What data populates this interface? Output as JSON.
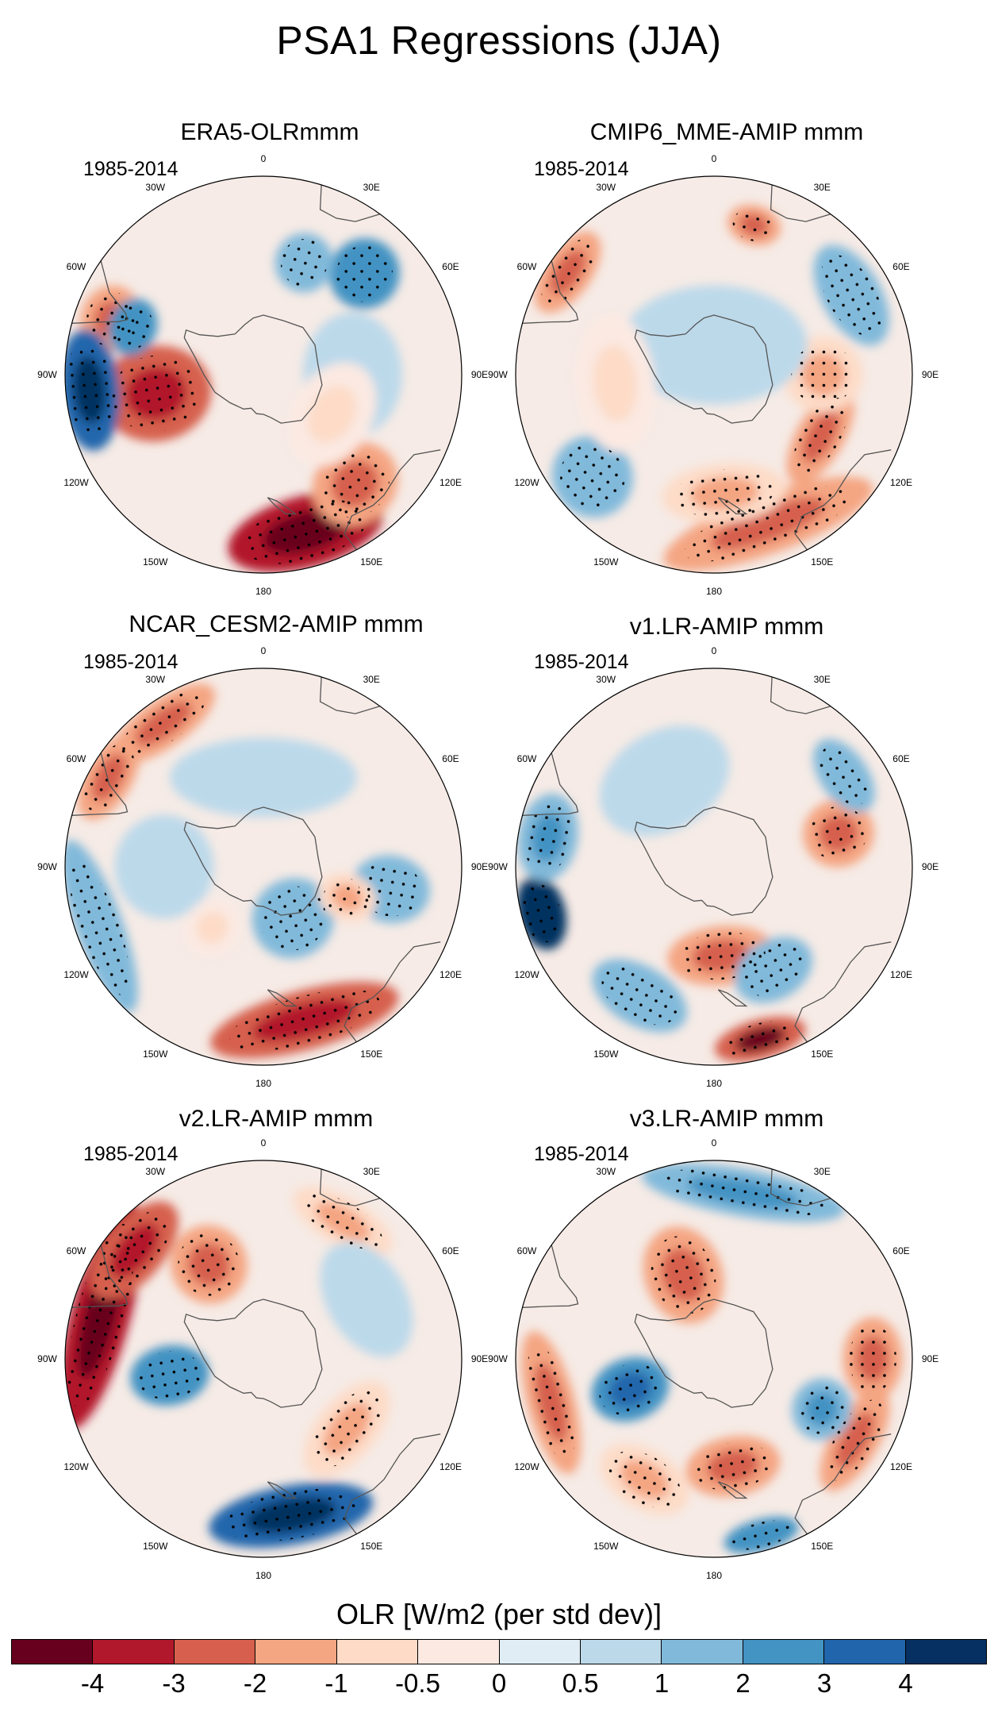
{
  "figure": {
    "title": "PSA1 Regressions (JJA)",
    "projection": "south polar stereographic",
    "lon_labels": [
      "0",
      "30E",
      "60E",
      "90E",
      "120E",
      "150E",
      "180",
      "150W",
      "120W",
      "90W",
      "60W",
      "30W"
    ],
    "stippling_note": "dots indicate statistically significant regression"
  },
  "panels": [
    {
      "title": "ERA5-OLRmmm",
      "period": "1985-2014",
      "anomalies": [
        {
          "lon": 165,
          "dist": 0.82,
          "value": -3.5,
          "lonw": 28,
          "radw": 0.18
        },
        {
          "lon": 140,
          "dist": 0.72,
          "value": -1.5,
          "lonw": 18,
          "radw": 0.2
        },
        {
          "lon": -100,
          "dist": 0.55,
          "value": -2.5,
          "lonw": 25,
          "radw": 0.28
        },
        {
          "lon": -70,
          "dist": 0.82,
          "value": -2,
          "lonw": 12,
          "radw": 0.15
        },
        {
          "lon": -95,
          "dist": 0.88,
          "value": 3,
          "lonw": 20,
          "radw": 0.15
        },
        {
          "lon": -70,
          "dist": 0.7,
          "value": 2,
          "lonw": 12,
          "radw": 0.12
        },
        {
          "lon": 45,
          "dist": 0.72,
          "value": 2,
          "lonw": 14,
          "radw": 0.18
        },
        {
          "lon": 20,
          "dist": 0.6,
          "value": 1,
          "lonw": 14,
          "radw": 0.15
        },
        {
          "lon": 90,
          "dist": 0.45,
          "value": 0.5,
          "lonw": 40,
          "radw": 0.25
        },
        {
          "lon": 120,
          "dist": 0.4,
          "value": -0.5,
          "lonw": 40,
          "radw": 0.2
        }
      ]
    },
    {
      "title": "CMIP6_MME-AMIP  mmm",
      "period": "1985-2014",
      "anomalies": [
        {
          "lon": 160,
          "dist": 0.8,
          "value": -2,
          "lonw": 40,
          "radw": 0.15
        },
        {
          "lon": 120,
          "dist": 0.62,
          "value": -1.5,
          "lonw": 25,
          "radw": 0.12
        },
        {
          "lon": 175,
          "dist": 0.6,
          "value": -1,
          "lonw": 30,
          "radw": 0.15
        },
        {
          "lon": 90,
          "dist": 0.55,
          "value": -1,
          "lonw": 20,
          "radw": 0.2
        },
        {
          "lon": -55,
          "dist": 0.9,
          "value": -1.5,
          "lonw": 15,
          "radw": 0.12
        },
        {
          "lon": 15,
          "dist": 0.78,
          "value": -1.5,
          "lonw": 10,
          "radw": 0.1
        },
        {
          "lon": 60,
          "dist": 0.8,
          "value": 1,
          "lonw": 20,
          "radw": 0.15
        },
        {
          "lon": -130,
          "dist": 0.8,
          "value": 1,
          "lonw": 15,
          "radw": 0.2
        },
        {
          "lon": 0,
          "dist": 0.15,
          "value": 0.5,
          "lonw": 180,
          "radw": 0.3
        },
        {
          "lon": -95,
          "dist": 0.5,
          "value": -0.5,
          "lonw": 40,
          "radw": 0.2
        }
      ]
    },
    {
      "title": "NCAR_CESM2-AMIP  mmm",
      "period": "1985-2014",
      "anomalies": [
        {
          "lon": 165,
          "dist": 0.8,
          "value": -2.5,
          "lonw": 35,
          "radw": 0.15
        },
        {
          "lon": -35,
          "dist": 0.88,
          "value": -2,
          "lonw": 20,
          "radw": 0.12
        },
        {
          "lon": -60,
          "dist": 0.9,
          "value": -1.5,
          "lonw": 15,
          "radw": 0.12
        },
        {
          "lon": -110,
          "dist": 0.88,
          "value": 1,
          "lonw": 30,
          "radw": 0.12
        },
        {
          "lon": -90,
          "dist": 0.5,
          "value": 0.5,
          "lonw": 30,
          "radw": 0.25
        },
        {
          "lon": 150,
          "dist": 0.3,
          "value": 1,
          "lonw": 40,
          "radw": 0.2
        },
        {
          "lon": 100,
          "dist": 0.65,
          "value": 1,
          "lonw": 15,
          "radw": 0.2
        },
        {
          "lon": 110,
          "dist": 0.45,
          "value": -1,
          "lonw": 15,
          "radw": 0.15
        },
        {
          "lon": -140,
          "dist": 0.4,
          "value": -0.5,
          "lonw": 20,
          "radw": 0.15
        },
        {
          "lon": 0,
          "dist": 0.45,
          "value": 0.5,
          "lonw": 60,
          "radw": 0.2
        }
      ]
    },
    {
      "title": "v1.LR-AMIP  mmm",
      "period": "1985-2014",
      "anomalies": [
        {
          "lon": -105,
          "dist": 0.9,
          "value": 4,
          "lonw": 12,
          "radw": 0.12
        },
        {
          "lon": -80,
          "dist": 0.85,
          "value": 1.5,
          "lonw": 15,
          "radw": 0.15
        },
        {
          "lon": 165,
          "dist": 0.9,
          "value": -3,
          "lonw": 15,
          "radw": 0.1
        },
        {
          "lon": 175,
          "dist": 0.45,
          "value": -1.5,
          "lonw": 35,
          "radw": 0.15
        },
        {
          "lon": 75,
          "dist": 0.65,
          "value": -1.5,
          "lonw": 15,
          "radw": 0.18
        },
        {
          "lon": -150,
          "dist": 0.75,
          "value": 1,
          "lonw": 20,
          "radw": 0.15
        },
        {
          "lon": 150,
          "dist": 0.6,
          "value": 1,
          "lonw": 20,
          "radw": 0.15
        },
        {
          "lon": 55,
          "dist": 0.8,
          "value": 1,
          "lonw": 15,
          "radw": 0.12
        },
        {
          "lon": -30,
          "dist": 0.5,
          "value": 0.5,
          "lonw": 40,
          "radw": 0.25
        }
      ]
    },
    {
      "title": "v2.LR-AMIP  mmm",
      "period": "1985-2014",
      "anomalies": [
        {
          "lon": -75,
          "dist": 0.85,
          "value": -3.5,
          "lonw": 40,
          "radw": 0.15
        },
        {
          "lon": -50,
          "dist": 0.85,
          "value": -2.5,
          "lonw": 20,
          "radw": 0.15
        },
        {
          "lon": -100,
          "dist": 0.48,
          "value": 2,
          "lonw": 18,
          "radw": 0.2
        },
        {
          "lon": 170,
          "dist": 0.8,
          "value": 3,
          "lonw": 30,
          "radw": 0.15
        },
        {
          "lon": -30,
          "dist": 0.55,
          "value": -1.5,
          "lonw": 20,
          "radw": 0.2
        },
        {
          "lon": 30,
          "dist": 0.8,
          "value": -1,
          "lonw": 20,
          "radw": 0.12
        },
        {
          "lon": 130,
          "dist": 0.55,
          "value": -1,
          "lonw": 30,
          "radw": 0.15
        },
        {
          "lon": 60,
          "dist": 0.6,
          "value": 0.5,
          "lonw": 30,
          "radw": 0.2
        }
      ]
    },
    {
      "title": "v3.LR-AMIP  mmm",
      "period": "1985-2014",
      "anomalies": [
        {
          "lon": 10,
          "dist": 0.85,
          "value": 1.5,
          "lonw": 35,
          "radw": 0.12
        },
        {
          "lon": -20,
          "dist": 0.45,
          "value": -2,
          "lonw": 25,
          "radw": 0.25
        },
        {
          "lon": -110,
          "dist": 0.45,
          "value": 2.5,
          "lonw": 20,
          "radw": 0.2
        },
        {
          "lon": -105,
          "dist": 0.85,
          "value": -2,
          "lonw": 25,
          "radw": 0.12
        },
        {
          "lon": 120,
          "dist": 0.82,
          "value": -2,
          "lonw": 20,
          "radw": 0.12
        },
        {
          "lon": 90,
          "dist": 0.8,
          "value": -1.5,
          "lonw": 15,
          "radw": 0.15
        },
        {
          "lon": 170,
          "dist": 0.55,
          "value": -1.5,
          "lonw": 25,
          "radw": 0.15
        },
        {
          "lon": 115,
          "dist": 0.6,
          "value": 1.5,
          "lonw": 15,
          "radw": 0.15
        },
        {
          "lon": 165,
          "dist": 0.92,
          "value": 2,
          "lonw": 12,
          "radw": 0.08
        },
        {
          "lon": -150,
          "dist": 0.7,
          "value": -1,
          "lonw": 20,
          "radw": 0.15
        }
      ]
    }
  ],
  "colorbar": {
    "title": "OLR [W/m2 (per std dev)]",
    "ticks": [
      "-4",
      "-3",
      "-2",
      "-1",
      "-0.5",
      "0",
      "0.5",
      "1",
      "2",
      "3",
      "4"
    ],
    "levels": [
      -4,
      -3,
      -2,
      -1,
      -0.5,
      0,
      0.5,
      1,
      2,
      3,
      4
    ],
    "colors": [
      "#67001f",
      "#b2182b",
      "#d6604d",
      "#f4a582",
      "#fddbc7",
      "#fbe9e2",
      "#e0edf5",
      "#bcd9ea",
      "#81b9da",
      "#4393c3",
      "#2166ac",
      "#053061"
    ]
  }
}
